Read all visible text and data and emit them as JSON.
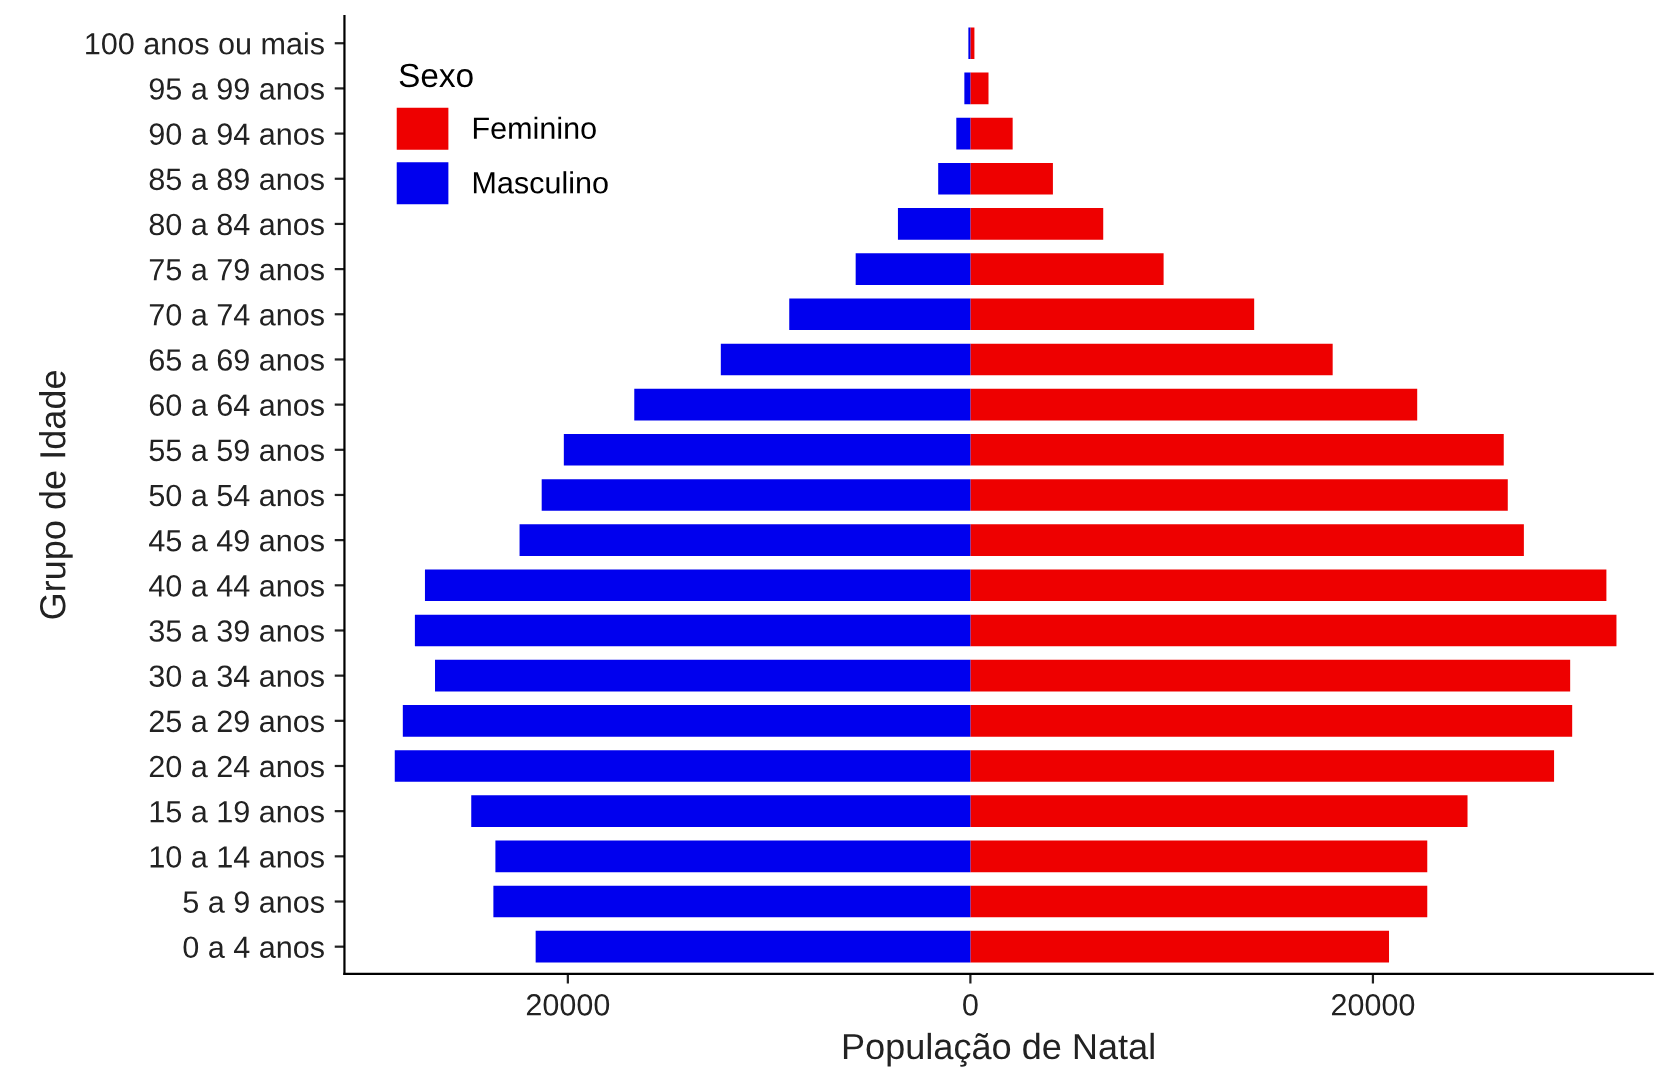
{
  "chart_data": {
    "type": "bar",
    "orientation": "horizontal",
    "stacked": true,
    "xlabel": "População de Natal",
    "ylabel": "Grupo de Idade",
    "legend_title": "Sexo",
    "legend": "top left",
    "grid": false,
    "categories": [
      "100 anos ou mais",
      "95 a 99 anos",
      "90 a 94 anos",
      "85 a 89 anos",
      "80 a 84 anos",
      "75 a 79 anos",
      "70 a 74 anos",
      "65 a 69 anos",
      "60 a 64 anos",
      "55 a 59 anos",
      "50 a 54 anos",
      "45 a 49 anos",
      "40 a 44 anos",
      "35 a 39 anos",
      "30 a 34 anos",
      "25 a 29 anos",
      "20 a 24 anos",
      "15 a 19 anos",
      "10 a 14 anos",
      "5 a 9 anos",
      "0 a 4 anos"
    ],
    "series": [
      {
        "name": "Feminino",
        "color": "#ee0000",
        "values": [
          200,
          900,
          2100,
          4100,
          6600,
          9600,
          14100,
          18000,
          22200,
          26500,
          26700,
          27500,
          31600,
          32100,
          29800,
          29900,
          29000,
          24700,
          22700,
          22700,
          20800
        ]
      },
      {
        "name": "Masculino",
        "color": "#0000ee",
        "values": [
          -100,
          -300,
          -700,
          -1600,
          -3600,
          -5700,
          -9000,
          -12400,
          -16700,
          -20200,
          -21300,
          -22400,
          -27100,
          -27600,
          -26600,
          -28200,
          -28600,
          -24800,
          -23600,
          -23700,
          -21600
        ]
      }
    ],
    "xlim": [
      -31100,
      33900
    ],
    "xticks": [
      {
        "value": -20000,
        "label": "20000"
      },
      0,
      20000
    ]
  }
}
